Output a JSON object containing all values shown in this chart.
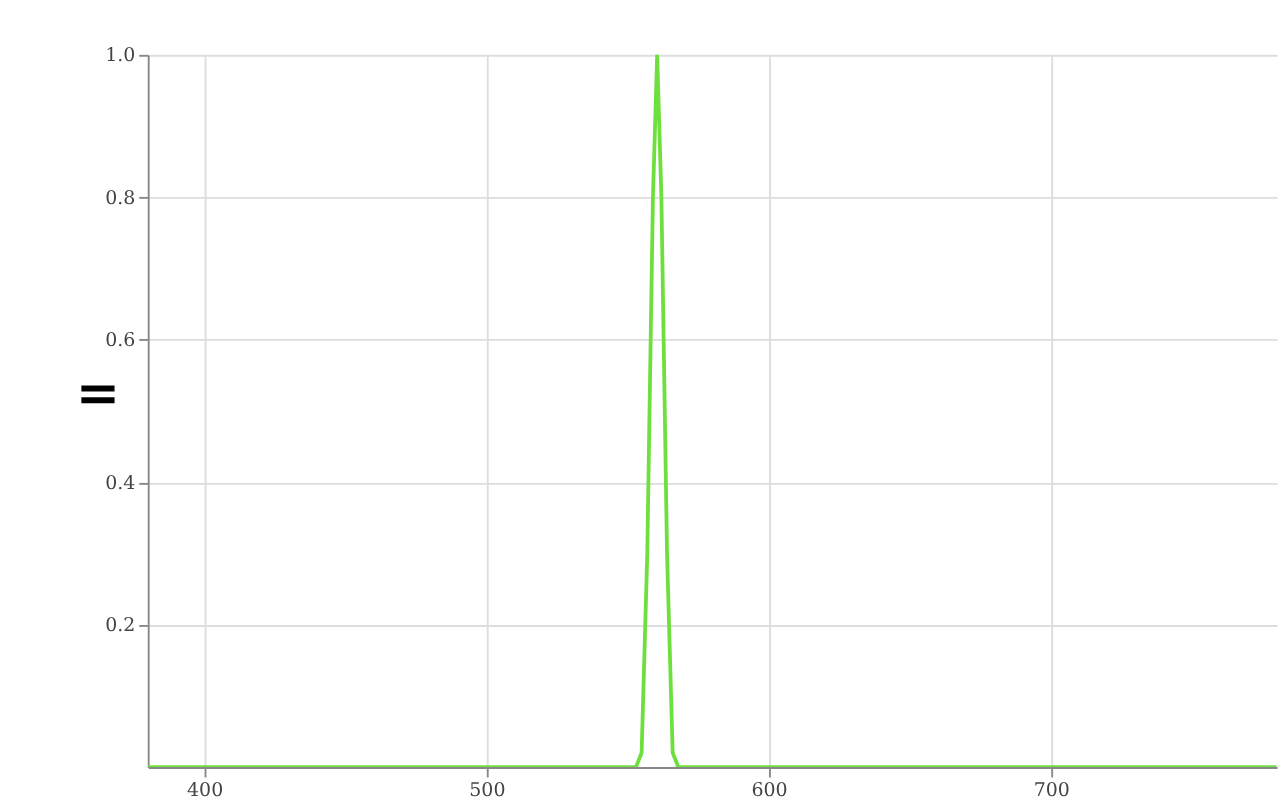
{
  "chart_data": {
    "type": "line",
    "x": [
      380,
      553,
      555,
      557,
      559,
      560.5,
      562,
      564,
      566,
      568,
      780
    ],
    "values": [
      0,
      0,
      0.02,
      0.3,
      0.8,
      1.0,
      0.8,
      0.3,
      0.02,
      0,
      0
    ],
    "color": "#6ee03c",
    "xlim": [
      380,
      780
    ],
    "xticks": [
      400,
      500,
      600,
      700
    ],
    "ylim": [
      0,
      1.0
    ],
    "yticks": [
      0.2,
      0.4,
      0.6,
      0.8,
      {
        "value": 1.0,
        "label": "1.0"
      }
    ],
    "grid": true,
    "marker": "none",
    "line_style": "solid",
    "annotations": [
      "="
    ]
  }
}
